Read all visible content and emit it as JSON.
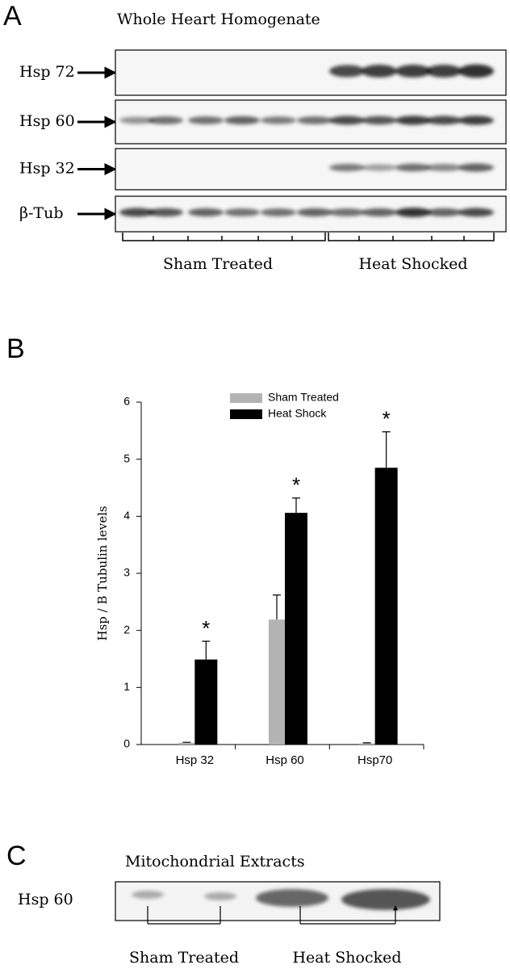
{
  "panel_a": {
    "label": "A",
    "title": "Whole Heart Homogenate",
    "rows": [
      "Hsp 72",
      "Hsp 60",
      "Hsp 32",
      "β-Tub"
    ],
    "groups": [
      "Sham Treated",
      "Heat Shocked"
    ]
  },
  "chart_data": {
    "label": "B",
    "type": "bar",
    "y_label": "Hsp / B Tubulin levels",
    "categories": [
      "Hsp 32",
      "Hsp 60",
      "Hsp70"
    ],
    "series": [
      {
        "name": "Sham Treated",
        "color": "#b3b3b3",
        "values": [
          0.03,
          2.19,
          0.02
        ],
        "errors": [
          0.01,
          0.43,
          0.01
        ]
      },
      {
        "name": "Heat Shock",
        "color": "#000000",
        "values": [
          1.49,
          4.06,
          4.85
        ],
        "errors": [
          0.32,
          0.26,
          0.63
        ]
      }
    ],
    "annotations": [
      "*",
      "*",
      "*"
    ],
    "ylim": [
      0,
      6
    ],
    "yticks": [
      0,
      1,
      2,
      3,
      4,
      5,
      6
    ]
  },
  "panel_c": {
    "label": "C",
    "title": "Mitochondrial Extracts",
    "row": "Hsp 60",
    "groups": [
      "Sham Treated",
      "Heat Shocked"
    ]
  }
}
